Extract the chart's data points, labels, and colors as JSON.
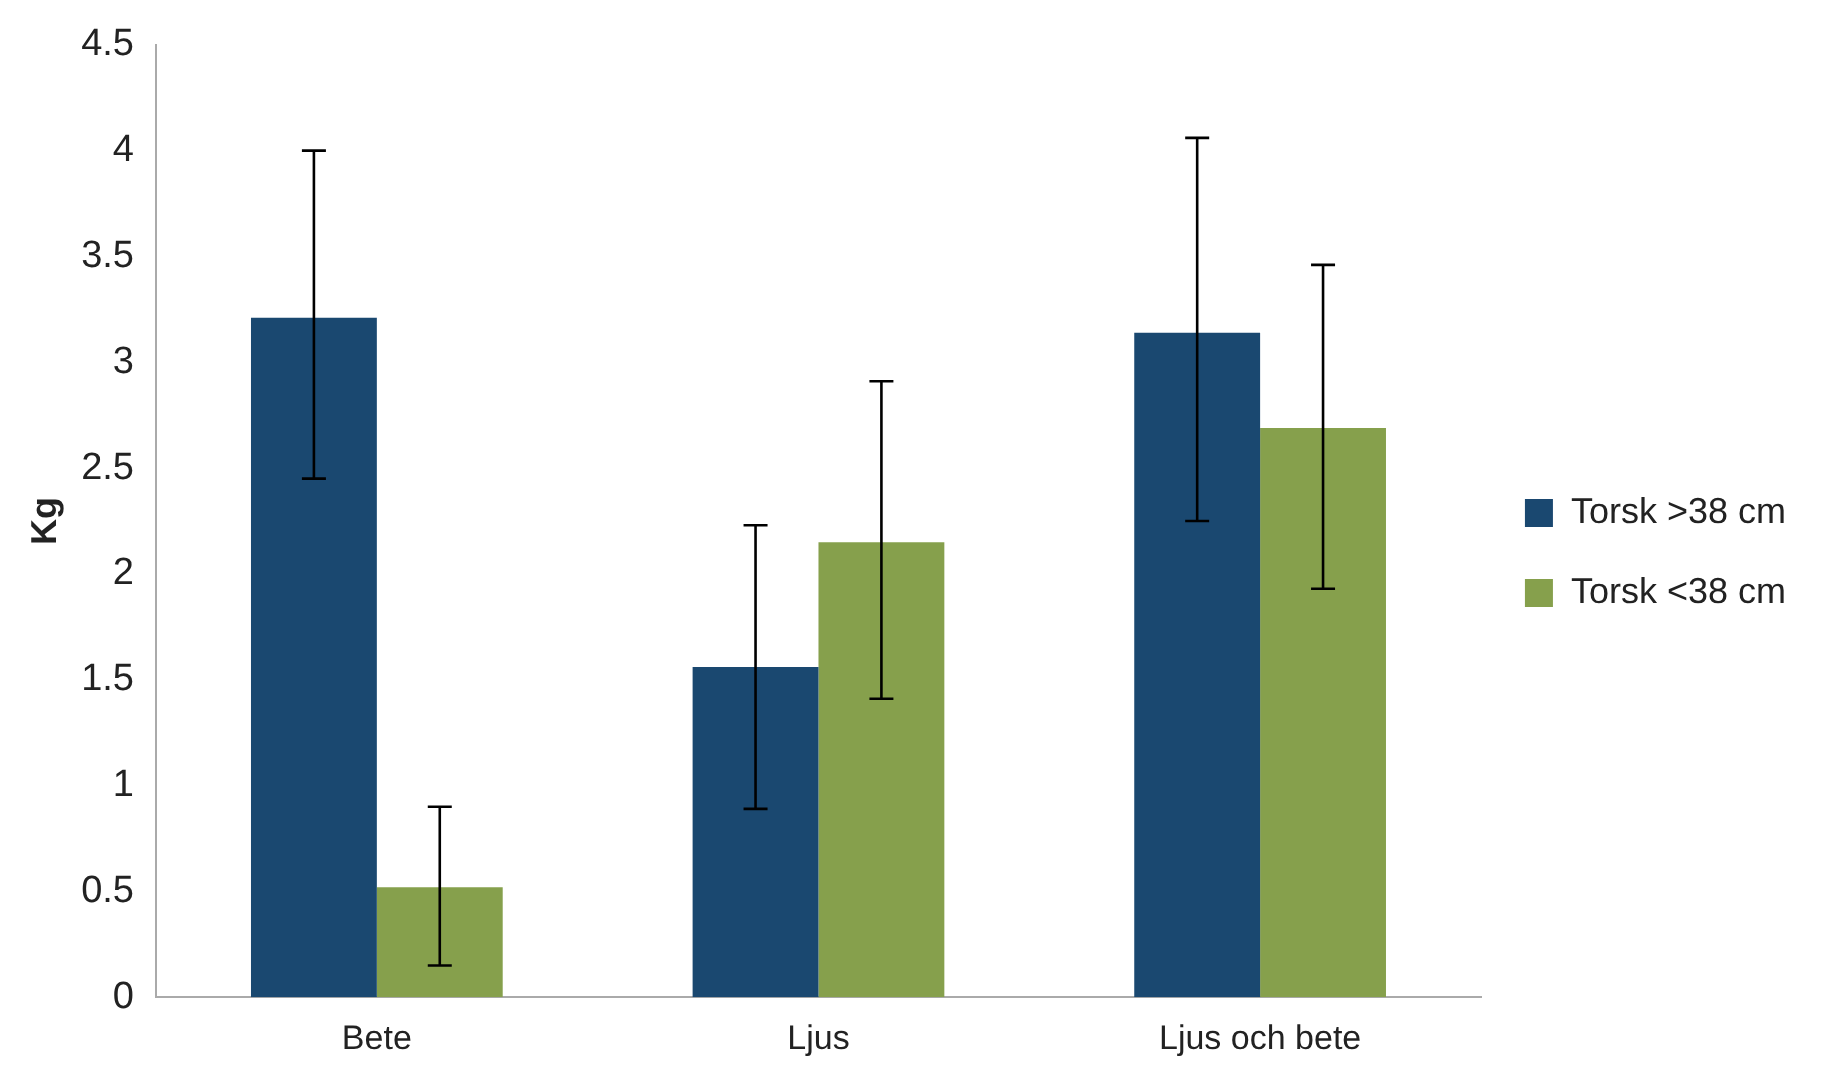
{
  "chart_data": {
    "type": "bar",
    "ylabel": "Kg",
    "categories": [
      "Bete",
      "Ljus",
      "Ljus och bete"
    ],
    "series": [
      {
        "name": "Torsk >38 cm",
        "color": "#1a4870",
        "values": [
          3.21,
          1.56,
          3.14
        ],
        "errors": [
          [
            2.45,
            4.0
          ],
          [
            0.89,
            2.23
          ],
          [
            2.25,
            4.06
          ]
        ]
      },
      {
        "name": "Torsk <38 cm",
        "color": "#86a04c",
        "values": [
          0.52,
          2.15,
          2.69
        ],
        "errors": [
          [
            0.15,
            0.9
          ],
          [
            1.41,
            2.91
          ],
          [
            1.93,
            3.46
          ]
        ]
      }
    ],
    "ylim": [
      0,
      4.5
    ],
    "yticks": [
      0,
      0.5,
      1,
      1.5,
      2,
      2.5,
      3,
      3.5,
      4,
      4.5
    ],
    "grid": false,
    "legend": "right"
  }
}
